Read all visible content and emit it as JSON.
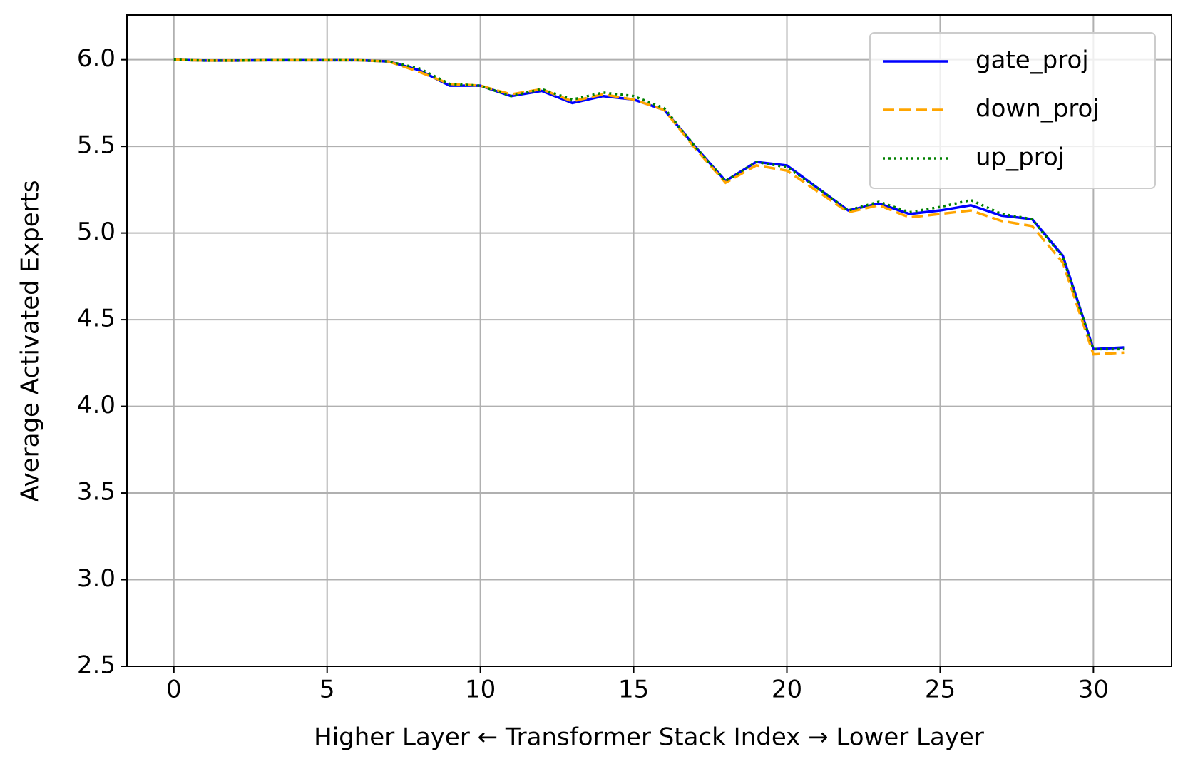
{
  "chart_data": {
    "type": "line",
    "xlabel": "Higher Layer ← Transformer Stack Index → Lower Layer",
    "ylabel": "Average Activated Experts",
    "x": [
      0,
      1,
      2,
      3,
      4,
      5,
      6,
      7,
      8,
      9,
      10,
      11,
      12,
      13,
      14,
      15,
      16,
      17,
      18,
      19,
      20,
      21,
      22,
      23,
      24,
      25,
      26,
      27,
      28,
      29,
      30,
      31
    ],
    "series": [
      {
        "name": "gate_proj",
        "color": "#0000ff",
        "style": "solid",
        "values": [
          6.0,
          5.995,
          5.995,
          5.997,
          5.997,
          5.997,
          5.997,
          5.99,
          5.94,
          5.85,
          5.85,
          5.79,
          5.82,
          5.75,
          5.79,
          5.77,
          5.71,
          5.5,
          5.3,
          5.41,
          5.39,
          5.26,
          5.13,
          5.17,
          5.11,
          5.13,
          5.16,
          5.1,
          5.08,
          4.87,
          4.33,
          4.34
        ]
      },
      {
        "name": "down_proj",
        "color": "#ffa500",
        "style": "dashed",
        "values": [
          6.0,
          5.995,
          5.995,
          5.997,
          5.997,
          5.997,
          5.997,
          5.99,
          5.93,
          5.86,
          5.85,
          5.8,
          5.83,
          5.76,
          5.8,
          5.77,
          5.71,
          5.49,
          5.29,
          5.39,
          5.36,
          5.24,
          5.12,
          5.16,
          5.09,
          5.11,
          5.13,
          5.07,
          5.04,
          4.83,
          4.3,
          4.31
        ]
      },
      {
        "name": "up_proj",
        "color": "#008000",
        "style": "dotted",
        "values": [
          6.0,
          5.995,
          5.995,
          5.997,
          5.997,
          5.997,
          5.997,
          5.99,
          5.95,
          5.86,
          5.85,
          5.79,
          5.83,
          5.77,
          5.81,
          5.79,
          5.72,
          5.5,
          5.3,
          5.41,
          5.38,
          5.26,
          5.13,
          5.18,
          5.12,
          5.15,
          5.19,
          5.11,
          5.08,
          4.86,
          4.33,
          4.33
        ]
      }
    ],
    "xlim": [
      -1.53,
      32.55
    ],
    "xticks": [
      0,
      5,
      10,
      15,
      20,
      25,
      30
    ],
    "ylim": [
      2.5,
      6.258
    ],
    "yticks": [
      2.5,
      {
        "value": 3,
        "label": "3.0"
      },
      3.5,
      {
        "value": 4,
        "label": "4.0"
      },
      4.5,
      {
        "value": 5,
        "label": "5.0"
      },
      5.5,
      {
        "value": 6,
        "label": "6.0"
      }
    ],
    "grid": true,
    "legend": "upper right"
  }
}
